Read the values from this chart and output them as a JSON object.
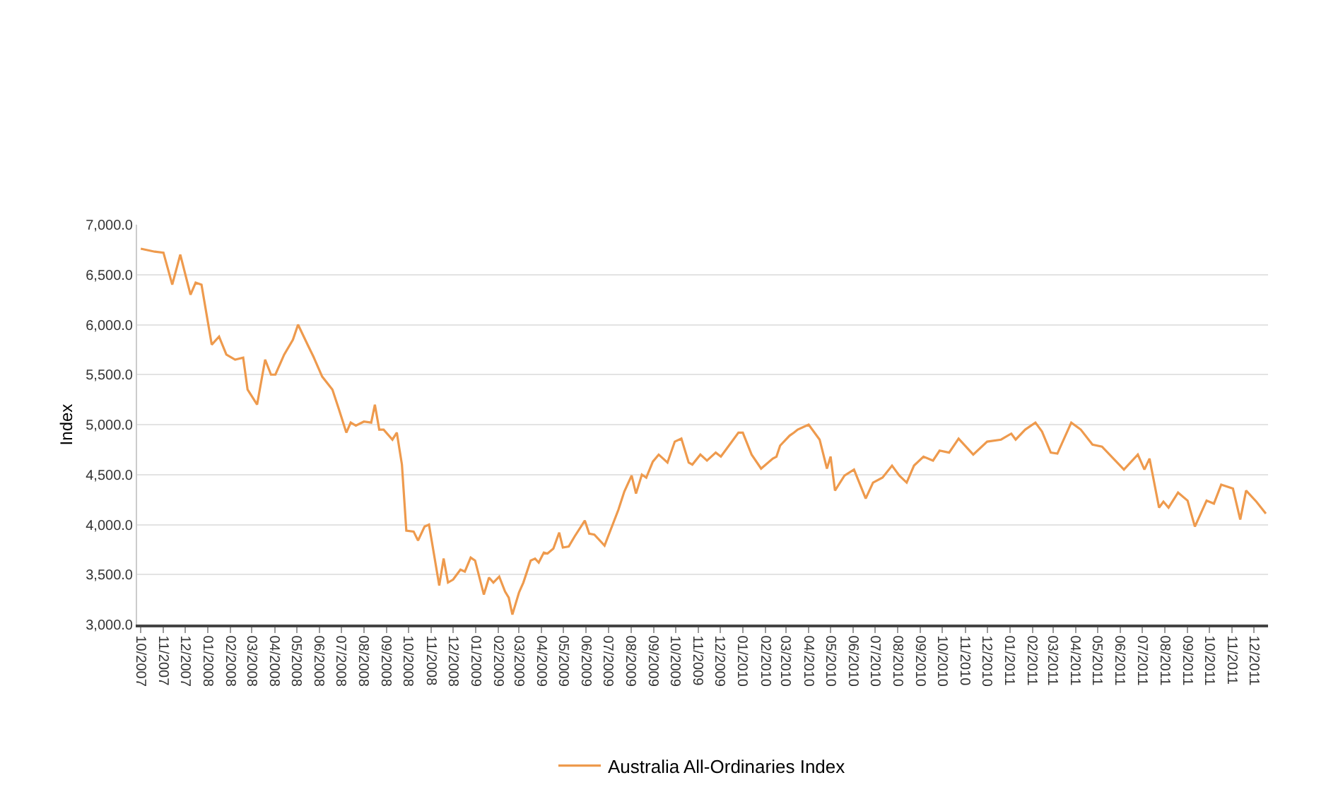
{
  "chart_data": {
    "type": "line",
    "ylabel": "Index",
    "legend": "bottom",
    "grid": "y",
    "marker": "none",
    "line_style": "solid",
    "xlim": [
      "2007-09-26",
      "2011-12-20"
    ],
    "ylim": [
      3000,
      7000
    ],
    "yticks": [
      {
        "value": 3000,
        "label": "3,000.0"
      },
      {
        "value": 3500,
        "label": "3,500.0"
      },
      {
        "value": 4000,
        "label": "4,000.0"
      },
      {
        "value": 4500,
        "label": "4,500.0"
      },
      {
        "value": 5000,
        "label": "5,000.0"
      },
      {
        "value": 5500,
        "label": "5,500.0"
      },
      {
        "value": 6000,
        "label": "6,000.0"
      },
      {
        "value": 6500,
        "label": "6,500.0"
      },
      {
        "value": 7000,
        "label": "7,000.0"
      }
    ],
    "xticks": [
      {
        "value": "2007-10",
        "label": "10/2007"
      },
      {
        "value": "2007-11",
        "label": "11/2007"
      },
      {
        "value": "2007-12",
        "label": "12/2007"
      },
      {
        "value": "2008-01",
        "label": "01/2008"
      },
      {
        "value": "2008-02",
        "label": "02/2008"
      },
      {
        "value": "2008-03",
        "label": "03/2008"
      },
      {
        "value": "2008-04",
        "label": "04/2008"
      },
      {
        "value": "2008-05",
        "label": "05/2008"
      },
      {
        "value": "2008-06",
        "label": "06/2008"
      },
      {
        "value": "2008-07",
        "label": "07/2008"
      },
      {
        "value": "2008-08",
        "label": "08/2008"
      },
      {
        "value": "2008-09",
        "label": "09/2008"
      },
      {
        "value": "2008-10",
        "label": "10/2008"
      },
      {
        "value": "2008-11",
        "label": "11/2008"
      },
      {
        "value": "2008-12",
        "label": "12/2008"
      },
      {
        "value": "2009-01",
        "label": "01/2009"
      },
      {
        "value": "2009-02",
        "label": "02/2009"
      },
      {
        "value": "2009-03",
        "label": "03/2009"
      },
      {
        "value": "2009-04",
        "label": "04/2009"
      },
      {
        "value": "2009-05",
        "label": "05/2009"
      },
      {
        "value": "2009-06",
        "label": "06/2009"
      },
      {
        "value": "2009-07",
        "label": "07/2009"
      },
      {
        "value": "2009-08",
        "label": "08/2009"
      },
      {
        "value": "2009-09",
        "label": "09/2009"
      },
      {
        "value": "2009-10",
        "label": "10/2009"
      },
      {
        "value": "2009-11",
        "label": "11/2009"
      },
      {
        "value": "2009-12",
        "label": "12/2009"
      },
      {
        "value": "2010-01",
        "label": "01/2010"
      },
      {
        "value": "2010-02",
        "label": "02/2010"
      },
      {
        "value": "2010-03",
        "label": "03/2010"
      },
      {
        "value": "2010-04",
        "label": "04/2010"
      },
      {
        "value": "2010-05",
        "label": "05/2010"
      },
      {
        "value": "2010-06",
        "label": "06/2010"
      },
      {
        "value": "2010-07",
        "label": "07/2010"
      },
      {
        "value": "2010-08",
        "label": "08/2010"
      },
      {
        "value": "2010-09",
        "label": "09/2010"
      },
      {
        "value": "2010-10",
        "label": "10/2010"
      },
      {
        "value": "2010-11",
        "label": "11/2010"
      },
      {
        "value": "2010-12",
        "label": "12/2010"
      },
      {
        "value": "2011-01",
        "label": "01/2011"
      },
      {
        "value": "2011-02",
        "label": "02/2011"
      },
      {
        "value": "2011-03",
        "label": "03/2011"
      },
      {
        "value": "2011-04",
        "label": "04/2011"
      },
      {
        "value": "2011-05",
        "label": "05/2011"
      },
      {
        "value": "2011-06",
        "label": "06/2011"
      },
      {
        "value": "2011-07",
        "label": "07/2011"
      },
      {
        "value": "2011-08",
        "label": "08/2011"
      },
      {
        "value": "2011-09",
        "label": "09/2011"
      },
      {
        "value": "2011-10",
        "label": "10/2011"
      },
      {
        "value": "2011-11",
        "label": "11/2011"
      },
      {
        "value": "2011-12",
        "label": "12/2011"
      }
    ],
    "x": [
      "2007-10-01",
      "2007-10-20",
      "2007-11-01",
      "2007-11-13",
      "2007-11-24",
      "2007-12-08",
      "2007-12-15",
      "2007-12-23",
      "2008-01-06",
      "2008-01-16",
      "2008-01-26",
      "2008-02-07",
      "2008-02-18",
      "2008-02-24",
      "2008-03-08",
      "2008-03-19",
      "2008-03-27",
      "2008-04-02",
      "2008-04-14",
      "2008-04-26",
      "2008-05-03",
      "2008-05-16",
      "2008-05-24",
      "2008-06-05",
      "2008-06-19",
      "2008-06-28",
      "2008-07-08",
      "2008-07-14",
      "2008-07-21",
      "2008-08-01",
      "2008-08-11",
      "2008-08-16",
      "2008-08-22",
      "2008-08-28",
      "2008-09-09",
      "2008-09-15",
      "2008-09-22",
      "2008-09-28",
      "2008-10-08",
      "2008-10-14",
      "2008-10-23",
      "2008-10-29",
      "2008-11-12",
      "2008-11-18",
      "2008-11-24",
      "2008-12-01",
      "2008-12-11",
      "2008-12-17",
      "2008-12-25",
      "2008-12-31",
      "2009-01-12",
      "2009-01-19",
      "2009-01-25",
      "2009-02-02",
      "2009-02-10",
      "2009-02-15",
      "2009-02-20",
      "2009-03-01",
      "2009-03-07",
      "2009-03-17",
      "2009-03-23",
      "2009-03-28",
      "2009-04-04",
      "2009-04-09",
      "2009-04-17",
      "2009-04-25",
      "2009-04-30",
      "2009-05-08",
      "2009-05-16",
      "2009-05-30",
      "2009-06-05",
      "2009-06-12",
      "2009-06-26",
      "2009-07-15",
      "2009-07-23",
      "2009-08-02",
      "2009-08-08",
      "2009-08-16",
      "2009-08-22",
      "2009-08-31",
      "2009-09-08",
      "2009-09-20",
      "2009-09-30",
      "2009-10-09",
      "2009-10-19",
      "2009-10-24",
      "2009-11-04",
      "2009-11-13",
      "2009-11-25",
      "2009-12-02",
      "2009-12-16",
      "2009-12-26",
      "2010-01-01",
      "2010-01-13",
      "2010-01-26",
      "2010-02-11",
      "2010-02-16",
      "2010-02-21",
      "2010-03-06",
      "2010-03-12",
      "2010-03-17",
      "2010-04-01",
      "2010-04-16",
      "2010-04-26",
      "2010-05-01",
      "2010-05-07",
      "2010-05-20",
      "2010-06-02",
      "2010-06-18",
      "2010-06-28",
      "2010-07-11",
      "2010-07-24",
      "2010-08-03",
      "2010-08-13",
      "2010-08-23",
      "2010-09-05",
      "2010-09-18",
      "2010-09-27",
      "2010-10-10",
      "2010-10-23",
      "2010-11-12",
      "2010-12-01",
      "2010-12-20",
      "2011-01-03",
      "2011-01-09",
      "2011-01-22",
      "2011-02-05",
      "2011-02-14",
      "2011-02-26",
      "2011-03-07",
      "2011-03-26",
      "2011-04-08",
      "2011-04-24",
      "2011-05-07",
      "2011-06-06",
      "2011-06-25",
      "2011-07-04",
      "2011-07-11",
      "2011-07-24",
      "2011-07-30",
      "2011-08-06",
      "2011-08-19",
      "2011-09-01",
      "2011-09-11",
      "2011-09-27",
      "2011-10-07",
      "2011-10-17",
      "2011-11-02",
      "2011-11-12",
      "2011-11-20",
      "2011-12-04",
      "2011-12-17"
    ],
    "series": [
      {
        "name": "Australia All-Ordinaries Index",
        "color": "#ee9a4d",
        "values": [
          6760,
          6730,
          6720,
          6400,
          6700,
          6300,
          6420,
          6400,
          5800,
          5880,
          5700,
          5650,
          5670,
          5350,
          5200,
          5650,
          5500,
          5500,
          5700,
          5850,
          6000,
          5800,
          5680,
          5480,
          5350,
          5150,
          4920,
          5020,
          4990,
          5030,
          5020,
          5200,
          4950,
          4950,
          4850,
          4920,
          4600,
          3940,
          3930,
          3840,
          3980,
          4000,
          3390,
          3660,
          3420,
          3450,
          3550,
          3530,
          3670,
          3640,
          3300,
          3470,
          3420,
          3480,
          3330,
          3270,
          3100,
          3320,
          3420,
          3640,
          3660,
          3620,
          3720,
          3710,
          3760,
          3920,
          3770,
          3780,
          3880,
          4040,
          3910,
          3900,
          3790,
          4150,
          4330,
          4490,
          4310,
          4500,
          4470,
          4630,
          4700,
          4620,
          4830,
          4860,
          4620,
          4600,
          4700,
          4640,
          4720,
          4680,
          4820,
          4920,
          4920,
          4700,
          4560,
          4660,
          4680,
          4790,
          4890,
          4920,
          4950,
          5000,
          4850,
          4560,
          4680,
          4340,
          4490,
          4550,
          4260,
          4420,
          4470,
          4590,
          4490,
          4420,
          4590,
          4680,
          4640,
          4740,
          4720,
          4860,
          4700,
          4830,
          4850,
          4910,
          4850,
          4950,
          5020,
          4930,
          4720,
          4710,
          5020,
          4950,
          4800,
          4780,
          4550,
          4700,
          4550,
          4660,
          4170,
          4230,
          4170,
          4320,
          4240,
          3980,
          4240,
          4210,
          4400,
          4360,
          4050,
          4340,
          4230,
          4110
        ]
      }
    ]
  }
}
